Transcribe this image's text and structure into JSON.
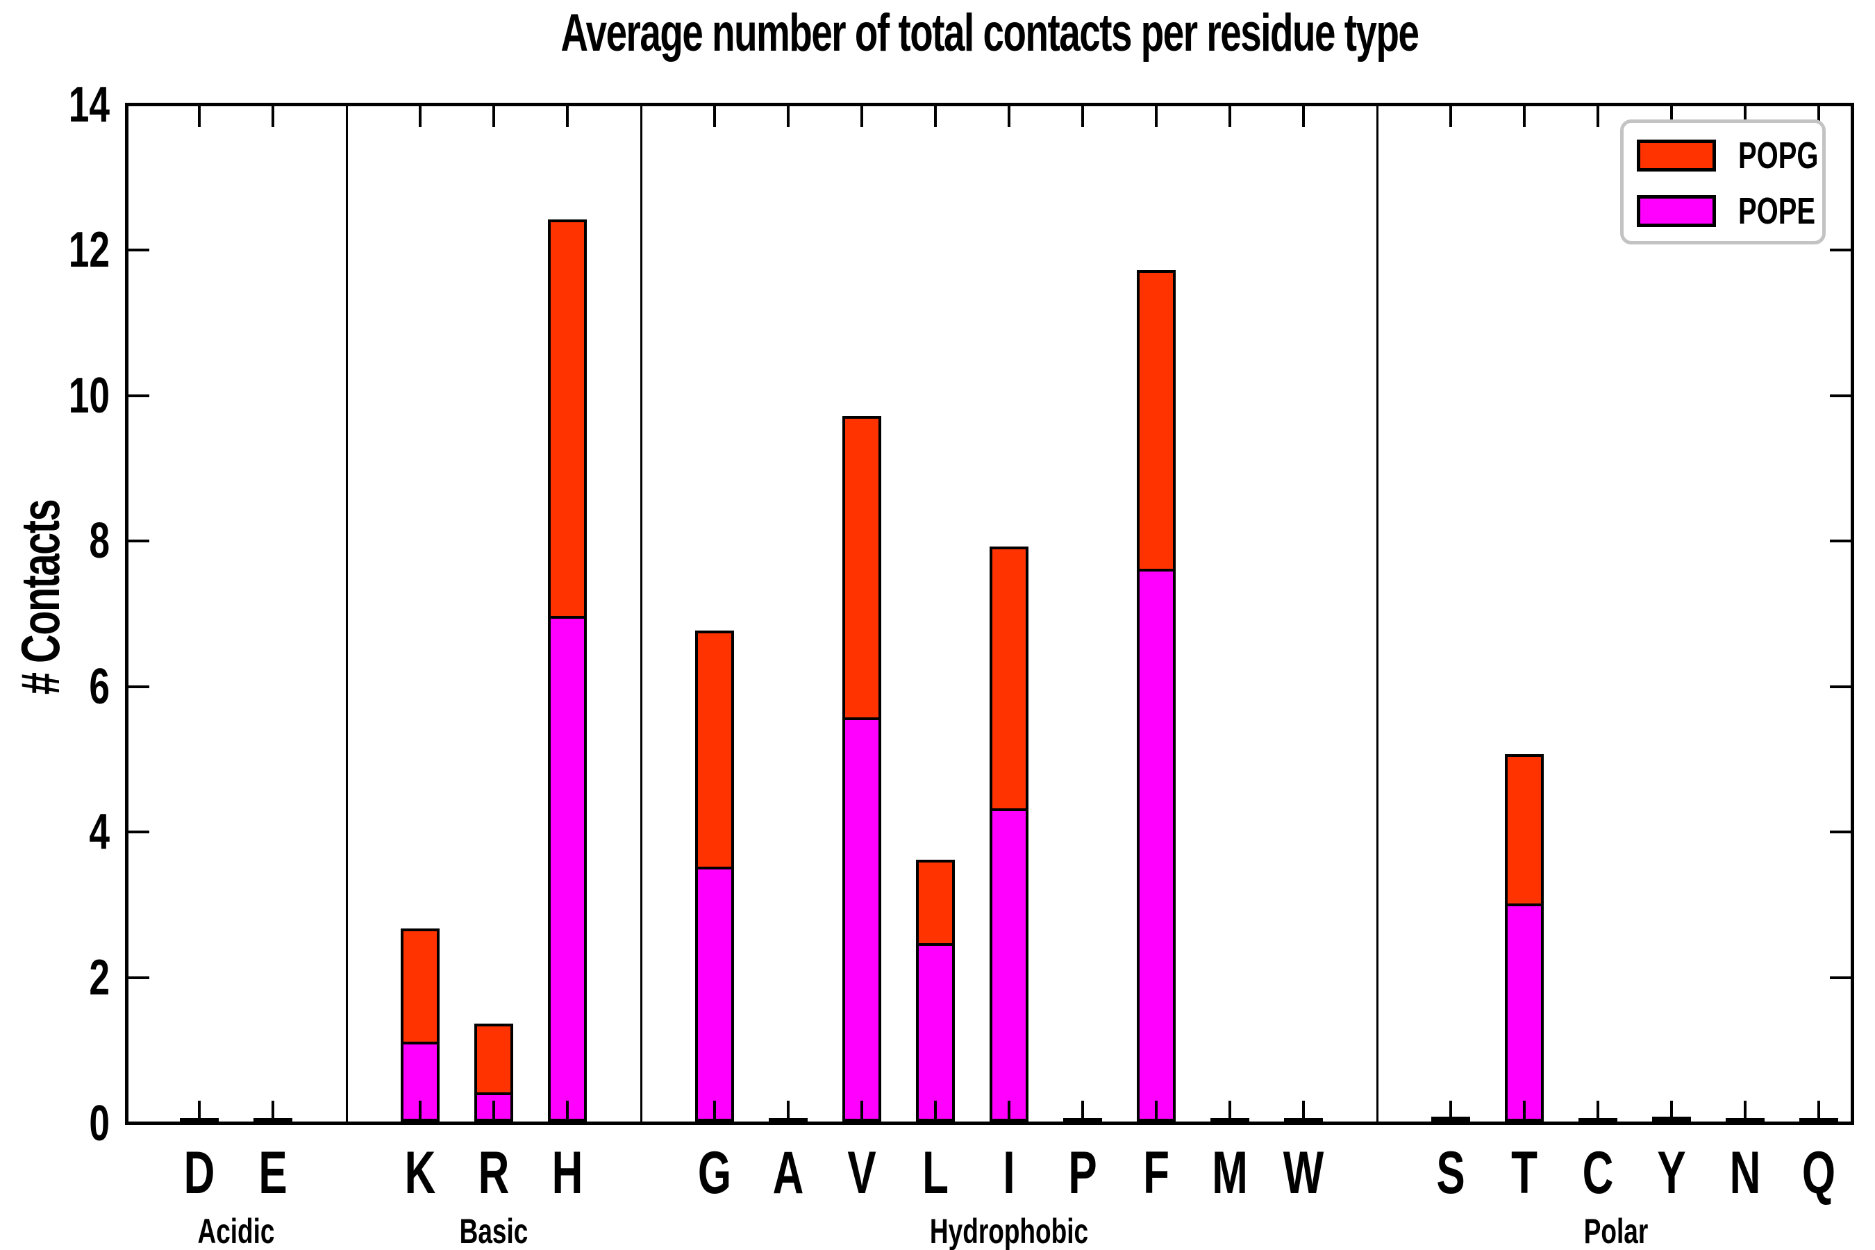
{
  "chart_data": {
    "type": "bar",
    "stacked": true,
    "title": "Average number of total contacts per residue type",
    "ylabel": "# Contacts",
    "xlabel": "",
    "ylim": [
      0,
      14
    ],
    "yticks": [
      0,
      2,
      4,
      6,
      8,
      10,
      12,
      14
    ],
    "grid": false,
    "legend_position": "top-right",
    "legend": {
      "entries": [
        {
          "label": "POPG",
          "color": "#ff3300"
        },
        {
          "label": "POPE",
          "color": "#ff00ff"
        }
      ]
    },
    "groups": [
      {
        "label": "Acidic",
        "residues": [
          "D",
          "E"
        ]
      },
      {
        "label": "Basic",
        "residues": [
          "K",
          "R",
          "H"
        ]
      },
      {
        "label": "Hydrophobic",
        "residues": [
          "G",
          "A",
          "V",
          "L",
          "I",
          "P",
          "F",
          "M",
          "W"
        ]
      },
      {
        "label": "Polar",
        "residues": [
          "S",
          "T",
          "C",
          "Y",
          "N",
          "Q"
        ]
      }
    ],
    "categories": [
      "D",
      "E",
      "K",
      "R",
      "H",
      "G",
      "A",
      "V",
      "L",
      "I",
      "P",
      "F",
      "M",
      "W",
      "S",
      "T",
      "C",
      "Y",
      "N",
      "Q"
    ],
    "series": [
      {
        "name": "POPE",
        "color": "#ff00ff",
        "values": {
          "D": 0.03,
          "E": 0.03,
          "K": 1.1,
          "R": 0.4,
          "H": 6.95,
          "G": 3.5,
          "A": 0.02,
          "V": 5.55,
          "L": 2.45,
          "I": 4.3,
          "P": 0.03,
          "F": 7.6,
          "M": 0.02,
          "W": 0.03,
          "S": 0.04,
          "T": 3.0,
          "C": 0.03,
          "Y": 0.04,
          "N": 0.03,
          "Q": 0.02
        }
      },
      {
        "name": "POPG",
        "color": "#ff3300",
        "values": {
          "D": 0.02,
          "E": 0.02,
          "K": 1.55,
          "R": 0.95,
          "H": 5.45,
          "G": 3.25,
          "A": 0.01,
          "V": 4.15,
          "L": 1.15,
          "I": 3.6,
          "P": 0.02,
          "F": 4.1,
          "M": 0.01,
          "W": 0.02,
          "S": 0.03,
          "T": 2.05,
          "C": 0.02,
          "Y": 0.03,
          "N": 0.02,
          "Q": 0.01
        }
      }
    ],
    "totals": {
      "K": 2.65,
      "R": 1.35,
      "H": 12.4,
      "G": 6.75,
      "V": 9.7,
      "L": 3.6,
      "I": 7.9,
      "F": 11.7,
      "T": 5.05
    }
  }
}
